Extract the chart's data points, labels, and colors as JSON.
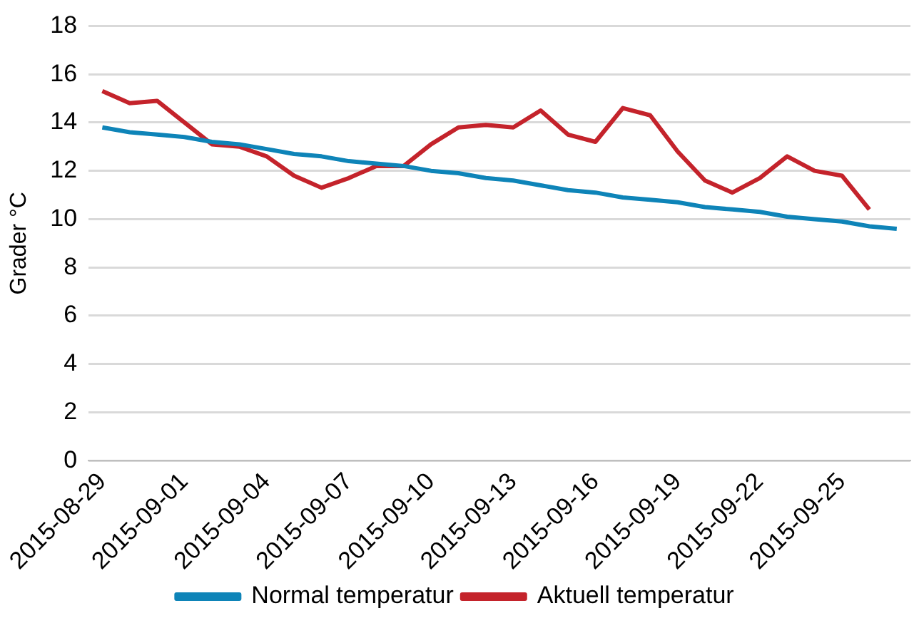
{
  "chart_data": {
    "type": "line",
    "ylabel": "Grader °C",
    "categories": [
      "2015-08-29",
      null,
      null,
      "2015-09-01",
      null,
      null,
      "2015-09-04",
      null,
      null,
      "2015-09-07",
      null,
      null,
      "2015-09-10",
      null,
      null,
      "2015-09-13",
      null,
      null,
      "2015-09-16",
      null,
      null,
      "2015-09-19",
      null,
      null,
      "2015-09-22",
      null,
      null,
      "2015-09-25",
      null,
      null
    ],
    "series": [
      {
        "name": "Normal temperatur",
        "color": "#0e84b8",
        "values": [
          13.8,
          13.6,
          13.5,
          13.4,
          13.2,
          13.1,
          12.9,
          12.7,
          12.6,
          12.4,
          12.3,
          12.2,
          12.0,
          11.9,
          11.7,
          11.6,
          11.4,
          11.2,
          11.1,
          10.9,
          10.8,
          10.7,
          10.5,
          10.4,
          10.3,
          10.1,
          10.0,
          9.9,
          9.7,
          9.6
        ]
      },
      {
        "name": "Aktuell temperatur",
        "color": "#c4232b",
        "values": [
          15.3,
          14.8,
          14.9,
          14.0,
          13.1,
          13.0,
          12.6,
          11.8,
          11.3,
          11.7,
          12.2,
          12.2,
          13.1,
          13.8,
          13.9,
          13.8,
          14.5,
          13.5,
          13.2,
          14.6,
          14.3,
          12.8,
          11.6,
          11.1,
          11.7,
          12.6,
          12.0,
          11.8,
          10.4,
          null
        ]
      }
    ],
    "ylim": [
      0,
      18
    ],
    "yticks": [
      0,
      2,
      4,
      6,
      8,
      10,
      12,
      14,
      16,
      18
    ],
    "grid": "y",
    "legend": "bottom",
    "marker": "none",
    "line_style": "solid"
  }
}
